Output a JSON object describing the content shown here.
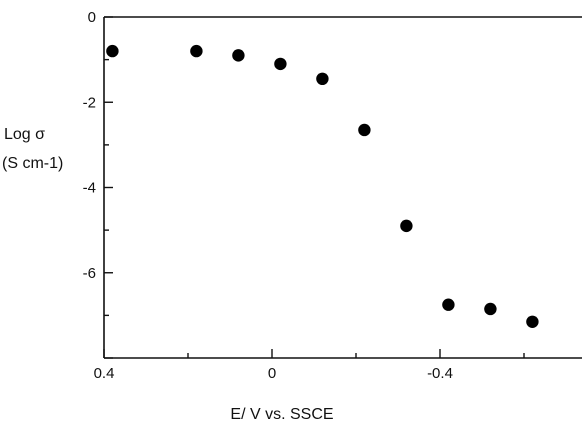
{
  "chart_data": {
    "type": "scatter",
    "title": "",
    "xlabel": "E/ V vs. SSCE",
    "ylabel": "Log σ",
    "ylabel_units": "(S cm-1)",
    "xlim": [
      0.4,
      -0.6
    ],
    "ylim": [
      -8,
      0
    ],
    "x_ticks": [
      0.4,
      0,
      -0.4
    ],
    "x_tick_labels": [
      "0.4",
      "0",
      "-0.4"
    ],
    "y_ticks": [
      0,
      -2,
      -4,
      -6
    ],
    "y_tick_labels": [
      "0",
      "-2",
      "-4",
      "-6"
    ],
    "grid": false,
    "legend": "none",
    "marker_color": "#000000",
    "points": [
      {
        "x": 0.38,
        "y": -0.8
      },
      {
        "x": 0.18,
        "y": -0.8
      },
      {
        "x": 0.08,
        "y": -0.9
      },
      {
        "x": -0.02,
        "y": -1.1
      },
      {
        "x": -0.12,
        "y": -1.45
      },
      {
        "x": -0.22,
        "y": -2.65
      },
      {
        "x": -0.32,
        "y": -4.9
      },
      {
        "x": -0.42,
        "y": -6.75
      },
      {
        "x": -0.52,
        "y": -6.85
      },
      {
        "x": -0.62,
        "y": -7.15
      }
    ]
  }
}
